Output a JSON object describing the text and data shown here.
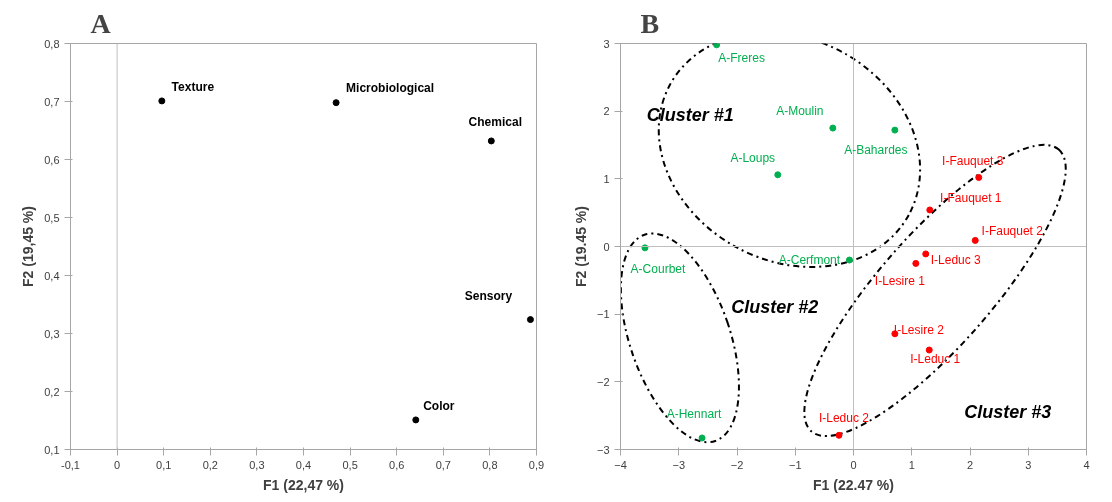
{
  "chart_data": [
    {
      "type": "scatter",
      "title": "A",
      "xlabel": "F1 (22,47 %)",
      "ylabel": "F2 (19,45 %)",
      "series": [
        {
          "color": "#000000",
          "x": [
            0.096,
            0.47,
            0.803,
            0.887,
            0.641
          ],
          "values": [
            0.701,
            0.698,
            0.632,
            0.324,
            0.151
          ]
        }
      ],
      "annotations": [
        {
          "text": "Texture",
          "x": 0.096,
          "y": 0.701
        },
        {
          "text": "Microbiological",
          "x": 0.47,
          "y": 0.698
        },
        {
          "text": "Chemical",
          "x": 0.803,
          "y": 0.632
        },
        {
          "text": "Sensory",
          "x": 0.887,
          "y": 0.324
        },
        {
          "text": "Color",
          "x": 0.641,
          "y": 0.151
        }
      ],
      "xlim": [
        -0.1,
        0.9
      ],
      "ylim": [
        0.1,
        0.8
      ],
      "xticks": [
        {
          "value": -0.1,
          "label": "-0,1"
        },
        0,
        {
          "value": 0.1,
          "label": "0,1"
        },
        {
          "value": 0.2,
          "label": "0,2"
        },
        {
          "value": 0.3,
          "label": "0,3"
        },
        {
          "value": 0.4,
          "label": "0,4"
        },
        {
          "value": 0.5,
          "label": "0,5"
        },
        {
          "value": 0.6,
          "label": "0,6"
        },
        {
          "value": 0.7,
          "label": "0,7"
        },
        {
          "value": 0.8,
          "label": "0,8"
        },
        {
          "value": 0.9,
          "label": "0,9"
        }
      ],
      "yticks": [
        {
          "value": 0.1,
          "label": "0,1"
        },
        {
          "value": 0.2,
          "label": "0,2"
        },
        {
          "value": 0.3,
          "label": "0,3"
        },
        {
          "value": 0.4,
          "label": "0,4"
        },
        {
          "value": 0.5,
          "label": "0,5"
        },
        {
          "value": 0.6,
          "label": "0,6"
        },
        {
          "value": 0.7,
          "label": "0,7"
        },
        {
          "value": 0.8,
          "label": "0,8"
        }
      ],
      "ref_lines": [
        {
          "axis": "x",
          "value": 0,
          "color": "#bfbfbf"
        }
      ],
      "marker": "circle",
      "grid": false
    },
    {
      "type": "scatter",
      "title": "B",
      "xlabel": "F1 (22.47 %)",
      "ylabel": "F2 (19.45 %)",
      "series": [
        {
          "color": "#00b050",
          "x": [
            -2.35,
            -0.355,
            0.71,
            -1.3,
            -3.58,
            -0.07,
            -2.6
          ],
          "values": [
            2.98,
            1.75,
            1.72,
            1.06,
            -0.02,
            -0.2,
            -2.83
          ]
        },
        {
          "color": "#ff0000",
          "x": [
            2.15,
            1.31,
            2.09,
            1.24,
            1.07,
            0.71,
            1.3,
            -0.25
          ],
          "values": [
            1.02,
            0.54,
            0.09,
            -0.11,
            -0.25,
            -1.29,
            -1.53,
            -2.79
          ]
        }
      ],
      "annotations": [
        {
          "text": "A-Freres",
          "x": -2.35,
          "y": 2.98
        },
        {
          "text": "A-Moulin",
          "x": -0.355,
          "y": 1.75
        },
        {
          "text": "A-Bahardes",
          "x": 0.71,
          "y": 1.72
        },
        {
          "text": "A-Loups",
          "x": -1.3,
          "y": 1.06
        },
        {
          "text": "I-Fauquet 3",
          "x": 2.15,
          "y": 1.02
        },
        {
          "text": "I-Fauquet 1",
          "x": 1.31,
          "y": 0.54
        },
        {
          "text": "I-Fauquet 2",
          "x": 2.09,
          "y": 0.09
        },
        {
          "text": "A-Courbet",
          "x": -3.58,
          "y": -0.02
        },
        {
          "text": "A-Cerfmont",
          "x": -0.07,
          "y": -0.2
        },
        {
          "text": "I-Leduc 3",
          "x": 1.24,
          "y": -0.11
        },
        {
          "text": "I-Lesire 1",
          "x": 1.07,
          "y": -0.25
        },
        {
          "text": "I-Lesire 2",
          "x": 0.71,
          "y": -1.29
        },
        {
          "text": "I-Leduc 1",
          "x": 1.3,
          "y": -1.53
        },
        {
          "text": "A-Hennart",
          "x": -2.6,
          "y": -2.83
        },
        {
          "text": "I-Leduc 2",
          "x": -0.25,
          "y": -2.79
        },
        "Cluster #1",
        "Cluster #2",
        "Cluster #3"
      ],
      "xlim": [
        -4,
        4
      ],
      "ylim": [
        -3,
        3
      ],
      "xticks": [
        -4,
        -3,
        -2,
        -1,
        0,
        1,
        2,
        3,
        4
      ],
      "yticks": [
        -3,
        -2,
        -1,
        0,
        1,
        2,
        3
      ],
      "ref_lines": [
        {
          "axis": "x",
          "value": 0,
          "color": "#bfbfbf"
        },
        {
          "axis": "y",
          "value": 0,
          "color": "#bfbfbf"
        }
      ],
      "marker": "circle",
      "grid": false
    }
  ]
}
